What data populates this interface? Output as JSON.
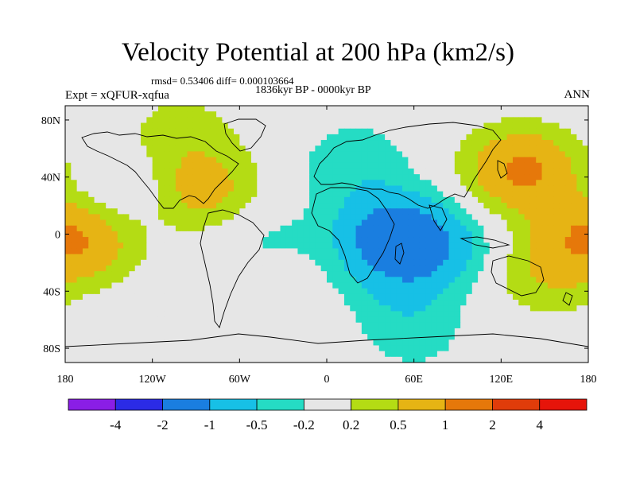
{
  "title": "Velocity Potential at 200 hPa (km2/s)",
  "stats_line": "rmsd= 0.53406 diff= 0.000103664",
  "period_line": "1836kyr BP - 0000kyr BP",
  "experiment": "Expt = xQFUR-xqfua",
  "season": "ANN",
  "axes": {
    "x_ticks": [
      {
        "label": "180",
        "lon": -180
      },
      {
        "label": "120W",
        "lon": -120
      },
      {
        "label": "60W",
        "lon": -60
      },
      {
        "label": "0",
        "lon": 0
      },
      {
        "label": "60E",
        "lon": 60
      },
      {
        "label": "120E",
        "lon": 120
      },
      {
        "label": "180",
        "lon": 180
      }
    ],
    "y_ticks": [
      {
        "label": "80N",
        "lat": 80
      },
      {
        "label": "40N",
        "lat": 40
      },
      {
        "label": "0",
        "lat": 0
      },
      {
        "label": "40S",
        "lat": -40
      },
      {
        "label": "80S",
        "lat": -80
      }
    ]
  },
  "colorbar": {
    "colors": [
      "#8a1ee6",
      "#2b2be6",
      "#1a7ee0",
      "#17c0e6",
      "#25dcc4",
      "#e6e6e6",
      "#b4dc14",
      "#e6b414",
      "#e6780a",
      "#e03c0a",
      "#e6140a"
    ],
    "labels": [
      "-4",
      "-2",
      "-1",
      "-0.5",
      "-0.2",
      "0.2",
      "0.5",
      "1",
      "2",
      "4"
    ]
  },
  "chart_data": {
    "type": "heatmap",
    "title": "Velocity Potential at 200 hPa (km2/s)",
    "units": "km2/s",
    "levels": [
      -4,
      -2,
      -1,
      -0.5,
      -0.2,
      0.2,
      0.5,
      1,
      2,
      4
    ],
    "lon_range": [
      -180,
      180
    ],
    "lat_range": [
      -90,
      90
    ],
    "background_value": 0,
    "anomalies": [
      {
        "lon": 20,
        "lat": 50,
        "value": -0.4
      },
      {
        "lon": 45,
        "lat": 0,
        "value": -1.3
      },
      {
        "lon": 75,
        "lat": -10,
        "value": -0.6
      },
      {
        "lon": 50,
        "lat": -35,
        "value": -0.4
      },
      {
        "lon": 60,
        "lat": -70,
        "value": -0.3
      },
      {
        "lon": -140,
        "lat": 30,
        "value": -0.3
      },
      {
        "lon": -45,
        "lat": 0,
        "value": -0.25
      },
      {
        "lon": -85,
        "lat": 30,
        "value": 0.7
      },
      {
        "lon": -165,
        "lat": -5,
        "value": 0.55
      },
      {
        "lon": -100,
        "lat": 70,
        "value": 0.35
      },
      {
        "lon": 135,
        "lat": 45,
        "value": 1.1
      },
      {
        "lon": 175,
        "lat": 0,
        "value": 0.6
      },
      {
        "lon": 150,
        "lat": -30,
        "value": 0.4
      }
    ]
  }
}
